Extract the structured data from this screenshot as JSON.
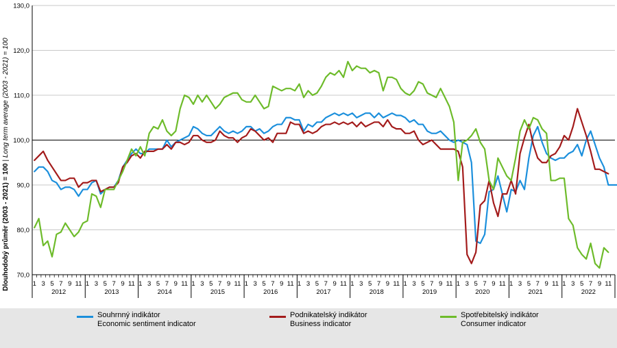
{
  "chart_data": {
    "type": "line",
    "ylabel_cz": "Dlouhodobý průměr (2003 - 2021) = 100",
    "ylabel_sep": " | ",
    "ylabel_en": "Long term average (2003 - 2021) = 100",
    "ylim": [
      70,
      130
    ],
    "y_ticks": [
      "70,0",
      "80,0",
      "90,0",
      "100,0",
      "110,0",
      "120,0",
      "130,0"
    ],
    "month_ticks": [
      "1",
      "3",
      "5",
      "7",
      "9",
      "11"
    ],
    "years": [
      "2012",
      "2013",
      "2014",
      "2015",
      "2016",
      "2017",
      "2018",
      "2019",
      "2020",
      "2021",
      "2022"
    ],
    "reference_line": 100,
    "grid": true,
    "series": [
      {
        "name_cz": "Souhrnný indikátor",
        "name_en": "Economic sentiment indicator",
        "color": "#1b8fdc",
        "values": [
          93,
          94,
          94,
          93,
          91,
          90.5,
          89,
          89.5,
          89.5,
          89,
          87.5,
          89,
          89,
          90.5,
          91,
          88,
          89,
          89.5,
          89.5,
          91,
          94,
          95.5,
          97,
          98,
          97,
          97,
          98,
          98,
          98,
          98,
          100,
          98.5,
          99.5,
          100,
          100.5,
          101,
          103,
          102.5,
          101.5,
          101,
          101,
          102,
          103,
          102,
          101.5,
          102,
          101.5,
          102,
          103,
          103,
          102,
          102.5,
          101.5,
          102,
          103,
          103.5,
          103.5,
          105,
          105,
          104.5,
          104.5,
          102,
          103.5,
          103,
          104,
          104,
          105,
          105.5,
          106,
          105.5,
          106,
          105.5,
          106,
          105,
          105.5,
          106,
          106,
          105,
          106,
          105,
          105.5,
          106,
          105.5,
          105.5,
          105,
          104,
          104.5,
          103.5,
          103.5,
          102,
          101.5,
          101.5,
          102,
          101,
          100,
          99.5,
          100,
          99.5,
          99,
          95,
          77.5,
          77,
          79,
          88.5,
          89,
          92,
          88,
          84,
          89,
          88.5,
          91,
          89,
          96,
          101,
          103,
          99.5,
          97,
          96,
          95.5,
          96,
          96,
          97,
          97.5,
          99,
          96.5,
          100,
          102,
          99,
          96,
          94,
          90,
          90,
          90,
          89.5
        ]
      },
      {
        "name_cz": "Podnikatelský indikátor",
        "name_en": "Business indicator",
        "color": "#a31b1b",
        "values": [
          95.5,
          96.5,
          97.5,
          95.5,
          94,
          92.5,
          91,
          91,
          91.5,
          91.5,
          89.5,
          90.5,
          90.5,
          91,
          91,
          88.5,
          89,
          89.5,
          89.5,
          90.5,
          94,
          95,
          96.5,
          97,
          96,
          97.5,
          97.5,
          97.5,
          98,
          98,
          99,
          98,
          99.5,
          99.5,
          99,
          99.5,
          101,
          101,
          100,
          99.5,
          99.5,
          100,
          102,
          101,
          100.5,
          100.5,
          99.5,
          100.5,
          101,
          102.5,
          102,
          101,
          100,
          100.5,
          99.5,
          101.5,
          101.5,
          101.5,
          104,
          103.5,
          103.5,
          101.5,
          102,
          101.5,
          102,
          103,
          103.5,
          103.5,
          104,
          103.5,
          104,
          103.5,
          104,
          103,
          104,
          103,
          103.5,
          104,
          104,
          103,
          104.5,
          103,
          102.5,
          102.5,
          101.5,
          101.5,
          102,
          100,
          99,
          99.5,
          100,
          99,
          98,
          98,
          98,
          98,
          97.5,
          94,
          74.5,
          72.5,
          75,
          85.5,
          86.5,
          91,
          86,
          83,
          88,
          88,
          91,
          88,
          97,
          100.5,
          103.5,
          99,
          96,
          95,
          95,
          96.5,
          97,
          98.5,
          101,
          100,
          103,
          107,
          104,
          101,
          97.5,
          93.5,
          93.5,
          93,
          92.5
        ]
      },
      {
        "name_cz": "Spotřebitelský indikátor",
        "name_en": "Consumer indicator",
        "color": "#6dbb2a",
        "values": [
          80.5,
          82.5,
          76.5,
          77.5,
          74,
          79,
          79.5,
          81.5,
          80,
          78.5,
          79.5,
          81.5,
          82,
          88,
          87.5,
          85,
          89,
          89,
          89,
          91,
          93,
          95.5,
          98,
          96.5,
          98.5,
          96.5,
          101.5,
          103,
          102.5,
          104.5,
          102,
          101,
          102,
          107,
          110,
          109.5,
          108,
          110,
          108.5,
          110,
          108.5,
          107,
          108,
          109.5,
          110,
          110.5,
          110.5,
          109,
          108.5,
          108.5,
          110,
          108.5,
          107,
          107.5,
          112,
          111.5,
          111,
          111.5,
          111.5,
          111,
          112.5,
          109.5,
          111,
          110,
          110.5,
          112,
          114,
          115,
          114.5,
          115.5,
          114,
          117.5,
          115.5,
          116.5,
          116,
          116,
          115,
          115.5,
          115,
          111,
          114,
          114,
          113.5,
          111.5,
          110.5,
          110,
          111,
          113,
          112.5,
          110.5,
          110,
          109.5,
          111.5,
          109.5,
          107.5,
          104,
          91,
          99.5,
          100,
          101,
          102.5,
          99.5,
          98,
          91,
          89,
          96,
          94,
          92,
          91,
          96,
          102,
          104.5,
          102.5,
          105,
          104.5,
          102.5,
          101.5,
          91,
          91,
          91.5,
          91.5,
          82.5,
          81,
          76,
          74.5,
          73.5,
          77,
          72.5,
          71.5,
          76,
          75
        ]
      }
    ]
  }
}
